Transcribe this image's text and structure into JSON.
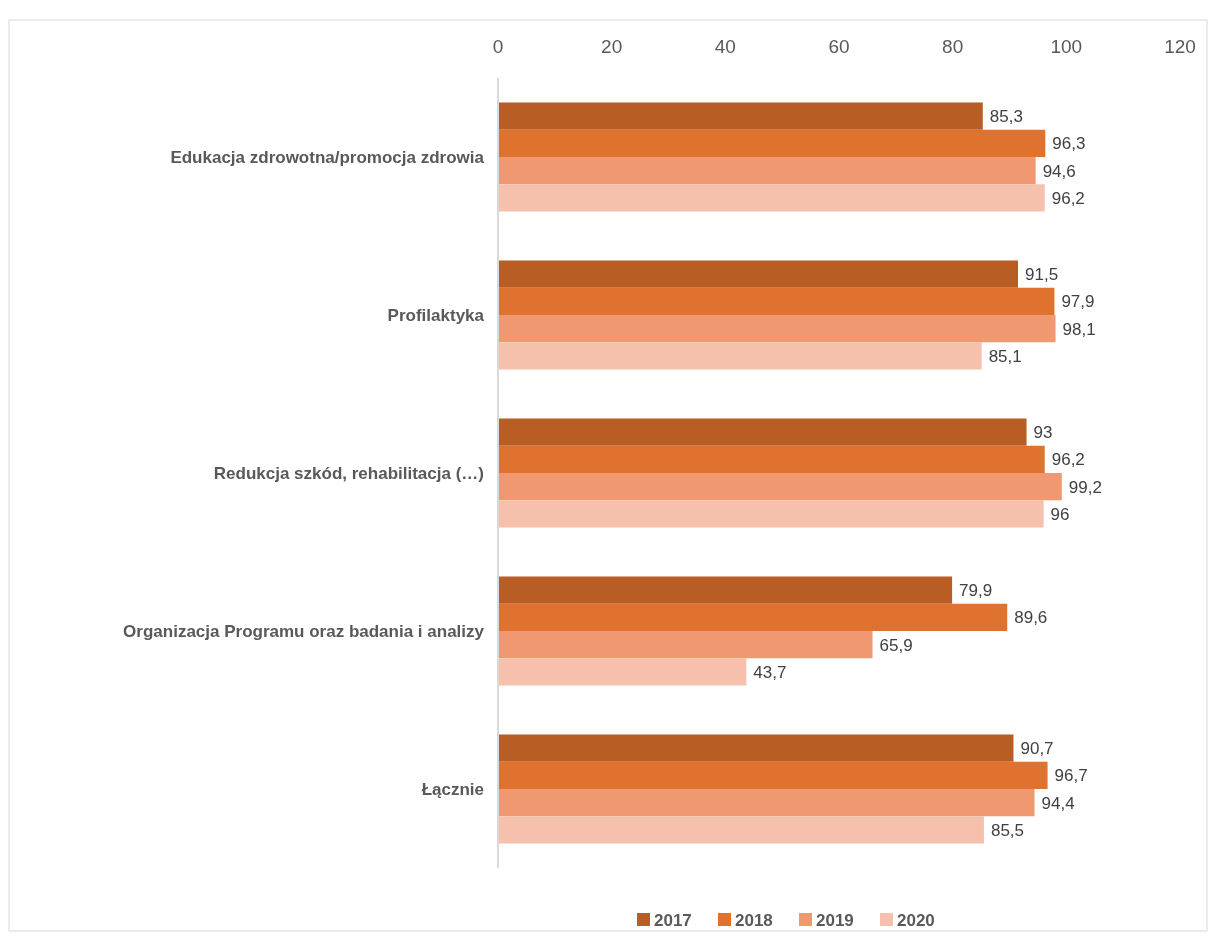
{
  "chart_data": {
    "type": "bar",
    "orientation": "horizontal",
    "categories": [
      "Edukacja zdrowotna/promocja zdrowia",
      "Profilaktyka",
      "Redukcja szkód, rehabilitacja (…)",
      "Organizacja Programu oraz badania i analizy",
      "Łącznie"
    ],
    "series": [
      {
        "name": "2017",
        "color": "#b85e24",
        "values": [
          85.3,
          91.5,
          93,
          79.9,
          90.7
        ],
        "value_labels": [
          "85,3",
          "91,5",
          "93",
          "79,9",
          "90,7"
        ]
      },
      {
        "name": "2018",
        "color": "#e07230",
        "values": [
          96.3,
          97.9,
          96.2,
          89.6,
          96.7
        ],
        "value_labels": [
          "96,3",
          "97,9",
          "96,2",
          "89,6",
          "96,7"
        ]
      },
      {
        "name": "2019",
        "color": "#f09870",
        "values": [
          94.6,
          98.1,
          99.2,
          65.9,
          94.4
        ],
        "value_labels": [
          "94,6",
          "98,1",
          "99,2",
          "65,9",
          "94,4"
        ]
      },
      {
        "name": "2020",
        "color": "#f5c0ac",
        "values": [
          96.2,
          85.1,
          96,
          43.7,
          85.5
        ],
        "value_labels": [
          "96,2",
          "85,1",
          "96",
          "43,7",
          "85,5"
        ]
      }
    ],
    "xlim": [
      0,
      120
    ],
    "xticks": [
      0,
      20,
      40,
      60,
      80,
      100,
      120
    ],
    "grid": false,
    "legend": "bottom"
  }
}
